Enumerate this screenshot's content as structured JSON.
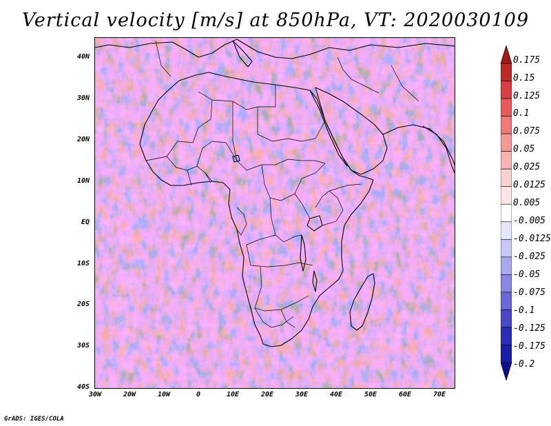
{
  "title": "Vertical velocity [m/s] at 850hPa, VT: 2020030109",
  "credit": "GrADS: IGES/COLA",
  "map": {
    "region": "Africa",
    "lon_range": [
      -30,
      75
    ],
    "lat_range": [
      -40,
      45
    ],
    "lat_labels": [
      "40N",
      "30N",
      "20N",
      "10N",
      "EQ",
      "10S",
      "20S",
      "30S",
      "40S"
    ],
    "lon_labels": [
      "30W",
      "20W",
      "10W",
      "0",
      "10E",
      "20E",
      "30E",
      "40E",
      "50E",
      "60E",
      "70E"
    ]
  },
  "colorbar": {
    "levels": [
      "0.175",
      "0.15",
      "0.125",
      "0.1",
      "0.075",
      "0.05",
      "0.025",
      "0.0125",
      "0.005",
      "-0.005",
      "-0.0125",
      "-0.025",
      "-0.05",
      "-0.075",
      "-0.1",
      "-0.125",
      "-0.175",
      "-0.2"
    ],
    "colors": [
      "#a01818",
      "#c02828",
      "#d84040",
      "#e85a5a",
      "#f07878",
      "#f49898",
      "#f8b4b4",
      "#fbd0d0",
      "#fde6e6",
      "#ffffff",
      "#e4e4fb",
      "#c8c8f6",
      "#a8a8ee",
      "#8888e4",
      "#6868d8",
      "#4848c8",
      "#2c2cb8",
      "#1c1ca4",
      "#0e0e8c"
    ]
  }
}
